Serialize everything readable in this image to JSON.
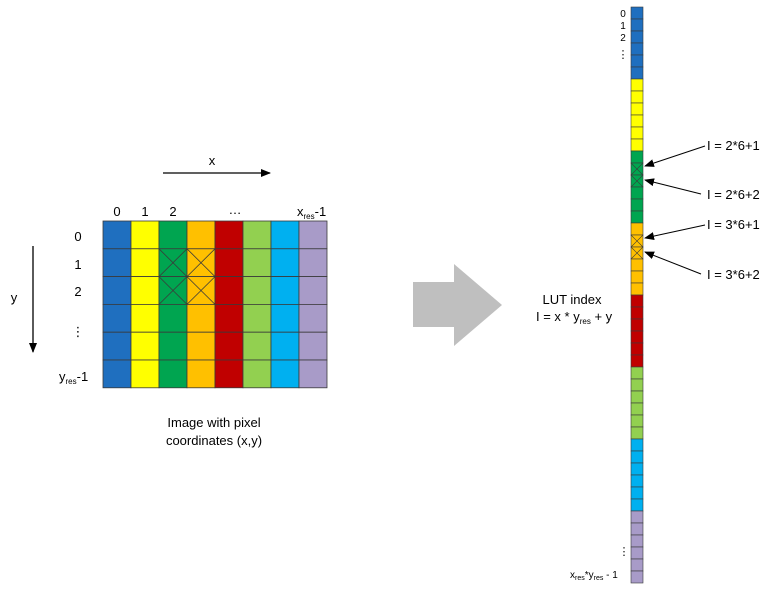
{
  "grid": {
    "x_axis_label": "x",
    "y_axis_label": "y",
    "column_labels": [
      "0",
      "1",
      "2",
      "…",
      "x",
      "res",
      "-1"
    ],
    "row_labels": [
      "0",
      "1",
      "2",
      "⋮",
      "y",
      "res",
      "-1"
    ],
    "column_colors": [
      "#1f6fbf",
      "#ffff00",
      "#00a550",
      "#ffc000",
      "#c00000",
      "#92d050",
      "#00b0f0",
      "#a89bc8"
    ],
    "caption_line1": "Image with pixel",
    "caption_line2": "coordinates (x,y)"
  },
  "lut": {
    "title": "LUT index",
    "formula_prefix": "I = x * y",
    "formula_sub": "res",
    "formula_suffix": " + y",
    "top_labels": [
      "0",
      "1",
      "2",
      "⋮"
    ],
    "bottom_dots": "⋮",
    "bottom_label_x": "x",
    "bottom_label_x_sub": "res",
    "bottom_label_mid": "*y",
    "bottom_label_y_sub": "res",
    "bottom_label_suffix": " - 1",
    "segment_colors": [
      "#1f6fbf",
      "#ffff00",
      "#00a550",
      "#ffc000",
      "#c00000",
      "#92d050",
      "#00b0f0",
      "#a89bc8"
    ],
    "callouts": [
      "I = 2*6+1",
      "I = 2*6+2",
      "I = 3*6+1",
      "I = 3*6+2"
    ]
  }
}
